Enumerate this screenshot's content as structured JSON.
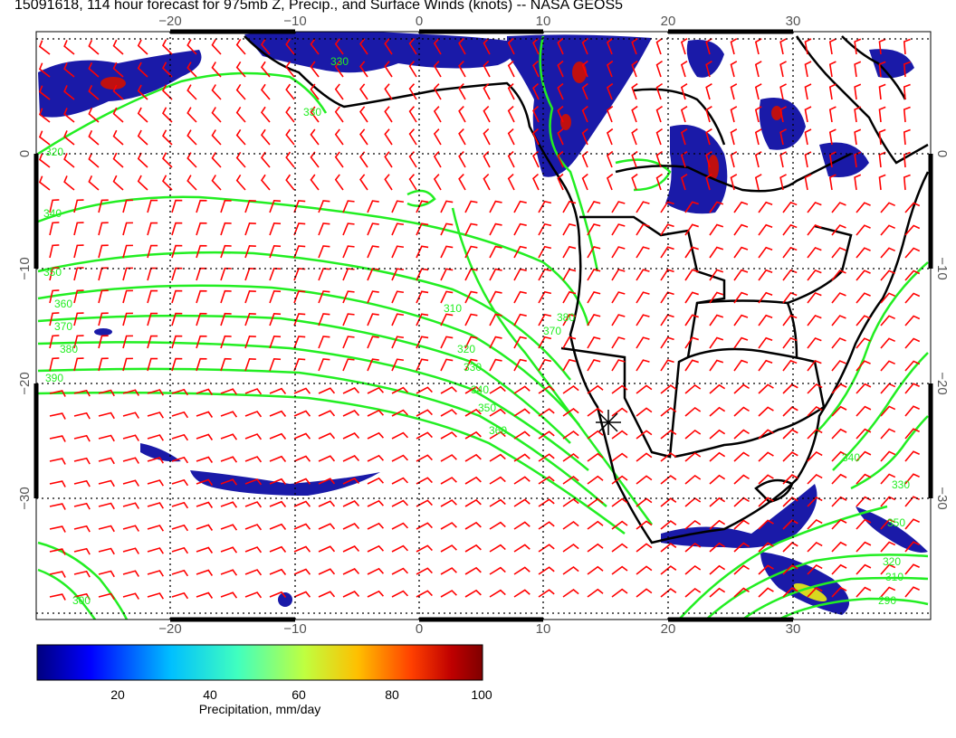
{
  "title": "15091618, 114 hour forecast for 975mb Z, Precip., and Surface Winds (knots) -- NASA GEOS5",
  "map": {
    "lon_range": [
      -30,
      40
    ],
    "lat_range": [
      -40,
      10
    ],
    "lon_ticks": [
      "−20",
      "−10",
      "0",
      "10",
      "20",
      "30"
    ],
    "lat_ticks": [
      "0",
      "−10",
      "−20",
      "−30"
    ],
    "contour_color": "#22ee22",
    "coast_color": "#000000",
    "barb_color": "#ff0000",
    "contour_labels": [
      "330",
      "320",
      "330",
      "340",
      "350",
      "360",
      "370",
      "380",
      "390",
      "310",
      "320",
      "330",
      "340",
      "350",
      "360",
      "370",
      "380",
      "340",
      "330",
      "320",
      "310",
      "290",
      "300",
      "350"
    ],
    "marker": "star-icon"
  },
  "colorbar": {
    "ticks": [
      "20",
      "40",
      "60",
      "80",
      "100"
    ],
    "label": "Precipitation, mm/day",
    "colors": [
      "#00007f",
      "#0000ff",
      "#00bfff",
      "#40ffbf",
      "#bfff40",
      "#ffbf00",
      "#ff4000",
      "#bf0000",
      "#7f0000"
    ]
  }
}
